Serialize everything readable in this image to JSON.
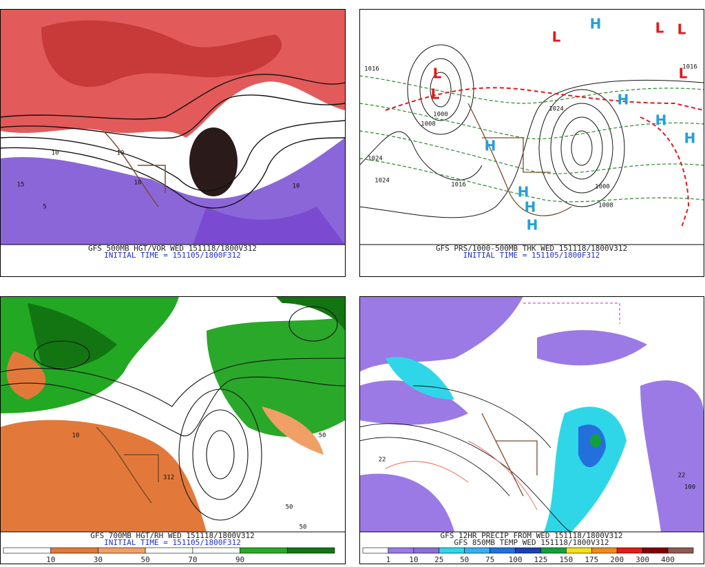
{
  "panels": [
    {
      "captions": [
        "GFS 500MB HGT/VOR WED 151118/1800V312"
      ],
      "initial_time": "INITIAL TIME = 151105/1800F312",
      "labels": [
        "10",
        "10",
        "15",
        "10",
        "5",
        "10"
      ]
    },
    {
      "captions": [
        "GFS PRS/1000-500MB THK WED 151118/1800V312"
      ],
      "initial_time": "INITIAL TIME = 151105/1800F312",
      "labels": [
        "L",
        "L",
        "L",
        "L",
        "L",
        "L",
        "H",
        "H",
        "H",
        "H",
        "H",
        "H",
        "H",
        "H",
        "1024",
        "1024",
        "1024",
        "1016",
        "1016",
        "1008",
        "1000",
        "1000",
        "1008",
        "1016"
      ]
    },
    {
      "captions": [
        "GFS 700MB HGT/RH WED 151118/1800V312"
      ],
      "initial_time": "INITIAL TIME = 151105/1800F312",
      "colorbar": {
        "labels": [
          "10",
          "30",
          "50",
          "70",
          "90"
        ],
        "colors": [
          "#ffffff",
          "#e2793a",
          "#f0a066",
          "#ffffff",
          "#ffffff",
          "#2aa82a",
          "#137513"
        ]
      },
      "labels": [
        "312",
        "10",
        "50",
        "50",
        "50"
      ]
    },
    {
      "captions": [
        "GFS 12HR PRECIP FROM WED 151118/1800V312",
        "GFS 850MB TEMP WED 151118/1800V312"
      ],
      "colorbar": {
        "labels": [
          "1",
          "10",
          "25",
          "50",
          "75",
          "100",
          "125",
          "150",
          "175",
          "200",
          "300",
          "400"
        ],
        "colors": [
          "#ffffff",
          "#9b7ae6",
          "#8a6ed8",
          "#2fd6e8",
          "#38b0f0",
          "#2370dc",
          "#1a3fb0",
          "#12a03c",
          "#f0e020",
          "#f08a20",
          "#e01a1a",
          "#800000",
          "#8b5a50"
        ]
      },
      "labels": [
        "22",
        "100",
        "22"
      ]
    }
  ]
}
